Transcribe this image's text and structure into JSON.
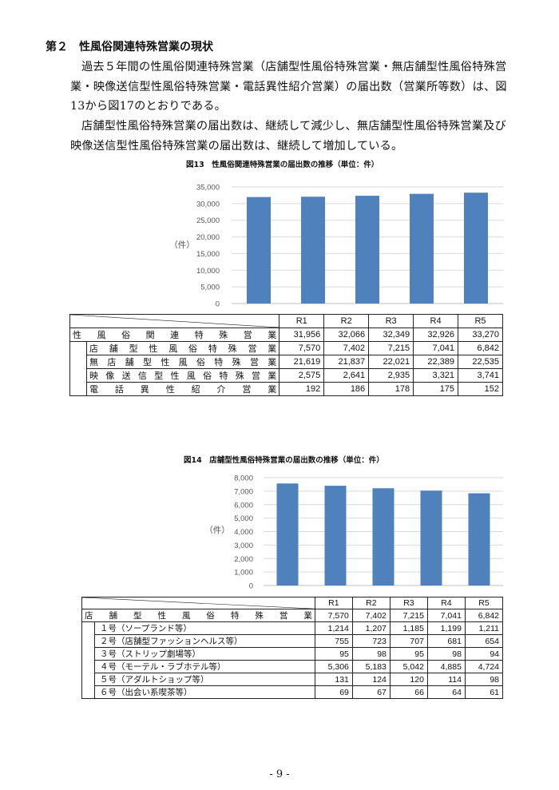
{
  "heading": "第２　性風俗関連特殊営業の現状",
  "paragraphs": [
    "過去５年間の性風俗関連特殊営業（店舗型性風俗特殊営業・無店舗型性風俗特殊営業・映像送信型性風俗特殊営業・電話異性紹介営業）の届出数（営業所等数）は、図13から図17のとおりである。",
    "店舗型性風俗特殊営業の届出数は、継続して減少し、無店舗型性風俗特殊営業及び映像送信型性風俗特殊営業の届出数は、継続して増加している。"
  ],
  "fig13": {
    "title": "図13　性風俗関連特殊営業の届出数の推移（単位：件）",
    "table": {
      "headers": [
        "R1",
        "R2",
        "R3",
        "R4",
        "R5"
      ],
      "rows": [
        {
          "label": "性風俗関連特殊営業",
          "values": [
            "31,956",
            "32,066",
            "32,349",
            "32,926",
            "33,270"
          ]
        },
        {
          "label": "店舗型性風俗特殊営業",
          "values": [
            "7,570",
            "7,402",
            "7,215",
            "7,041",
            "6,842"
          ]
        },
        {
          "label": "無店舗型性風俗特殊営業",
          "values": [
            "21,619",
            "21,837",
            "22,021",
            "22,389",
            "22,535"
          ]
        },
        {
          "label": "映像送信型性風俗特殊営業",
          "values": [
            "2,575",
            "2,641",
            "2,935",
            "3,321",
            "3,741"
          ]
        },
        {
          "label": "電話異性紹介営業",
          "values": [
            "192",
            "186",
            "178",
            "175",
            "152"
          ]
        }
      ]
    }
  },
  "fig14": {
    "title": "図14　店舗型性風俗特殊営業の届出数の推移（単位：件）",
    "table": {
      "headers": [
        "R1",
        "R2",
        "R3",
        "R4",
        "R5"
      ],
      "rows": [
        {
          "label": "店舗型性風俗特殊営業",
          "values": [
            "7,570",
            "7,402",
            "7,215",
            "7,041",
            "6,842"
          ]
        },
        {
          "label": "１号（ソープランド等）",
          "values": [
            "1,214",
            "1,207",
            "1,185",
            "1,199",
            "1,211"
          ]
        },
        {
          "label": "２号（店舗型ファッションヘルス等）",
          "values": [
            "755",
            "723",
            "707",
            "681",
            "654"
          ]
        },
        {
          "label": "３号（ストリップ劇場等）",
          "values": [
            "95",
            "98",
            "95",
            "98",
            "94"
          ]
        },
        {
          "label": "４号（モーテル・ラブホテル等）",
          "values": [
            "5,306",
            "5,183",
            "5,042",
            "4,885",
            "4,724"
          ]
        },
        {
          "label": "５号（アダルトショップ等）",
          "values": [
            "131",
            "124",
            "120",
            "114",
            "98"
          ]
        },
        {
          "label": "６号（出会い系喫茶等）",
          "values": [
            "69",
            "67",
            "66",
            "64",
            "61"
          ]
        }
      ]
    }
  },
  "chart_data": [
    {
      "type": "bar",
      "categories": [
        "R1",
        "R2",
        "R3",
        "R4",
        "R5"
      ],
      "values": [
        31956,
        32066,
        32349,
        32926,
        33270
      ],
      "ylabel": "（件）",
      "ylim": [
        0,
        35000
      ],
      "yticks": [
        "0",
        "5,000",
        "10,000",
        "15,000",
        "20,000",
        "25,000",
        "30,000",
        "35,000"
      ],
      "grid": true,
      "color": "#4f81bd"
    },
    {
      "type": "bar",
      "categories": [
        "R1",
        "R2",
        "R3",
        "R4",
        "R5"
      ],
      "values": [
        7570,
        7402,
        7215,
        7041,
        6842
      ],
      "ylabel": "（件）",
      "ylim": [
        0,
        8000
      ],
      "yticks": [
        "0",
        "1,000",
        "2,000",
        "3,000",
        "4,000",
        "5,000",
        "6,000",
        "7,000",
        "8,000"
      ],
      "grid": true,
      "color": "#4f81bd"
    }
  ],
  "page_number": "- 9 -"
}
